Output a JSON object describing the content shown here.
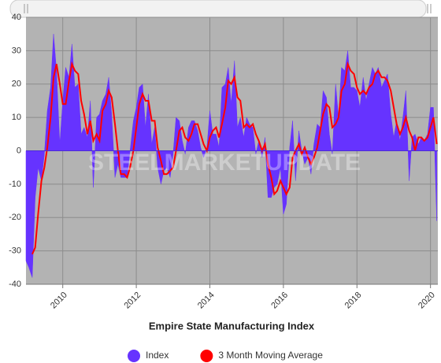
{
  "chart_data": {
    "type": "area",
    "title": "Empire State Manufacturing Index",
    "watermark": "STEELMARKETUPDATE",
    "x": [
      2009,
      2009.08,
      2009.17,
      2009.25,
      2009.33,
      2009.42,
      2009.5,
      2009.58,
      2009.67,
      2009.75,
      2009.83,
      2009.92,
      2010,
      2010.08,
      2010.17,
      2010.25,
      2010.33,
      2010.42,
      2010.5,
      2010.58,
      2010.67,
      2010.75,
      2010.83,
      2010.92,
      2011,
      2011.08,
      2011.17,
      2011.25,
      2011.33,
      2011.42,
      2011.5,
      2011.58,
      2011.67,
      2011.75,
      2011.83,
      2011.92,
      2012,
      2012.08,
      2012.17,
      2012.25,
      2012.33,
      2012.42,
      2012.5,
      2012.58,
      2012.67,
      2012.75,
      2012.83,
      2012.92,
      2013,
      2013.08,
      2013.17,
      2013.25,
      2013.33,
      2013.42,
      2013.5,
      2013.58,
      2013.67,
      2013.75,
      2013.83,
      2013.92,
      2014,
      2014.08,
      2014.17,
      2014.25,
      2014.33,
      2014.42,
      2014.5,
      2014.58,
      2014.67,
      2014.75,
      2014.83,
      2014.92,
      2015,
      2015.08,
      2015.17,
      2015.25,
      2015.33,
      2015.42,
      2015.5,
      2015.58,
      2015.67,
      2015.75,
      2015.83,
      2015.92,
      2016,
      2016.08,
      2016.17,
      2016.25,
      2016.33,
      2016.42,
      2016.5,
      2016.58,
      2016.67,
      2016.75,
      2016.83,
      2016.92,
      2017,
      2017.08,
      2017.17,
      2017.25,
      2017.33,
      2017.42,
      2017.5,
      2017.58,
      2017.67,
      2017.75,
      2017.83,
      2017.92,
      2018,
      2018.08,
      2018.17,
      2018.25,
      2018.33,
      2018.42,
      2018.5,
      2018.58,
      2018.67,
      2018.75,
      2018.83,
      2018.92,
      2019,
      2019.08,
      2019.17,
      2019.25,
      2019.33,
      2019.42,
      2019.5,
      2019.58,
      2019.67,
      2019.75,
      2019.83,
      2019.92,
      2020,
      2020.08,
      2020.17
    ],
    "series": [
      {
        "name": "Index",
        "color": "#6633ff",
        "values": [
          -33,
          -35,
          -38,
          -14,
          -5,
          -9,
          -1,
          12,
          19,
          35,
          24,
          2,
          15,
          25,
          22,
          32,
          19,
          20,
          5,
          7,
          4,
          15,
          -11,
          10,
          11,
          15,
          17,
          22,
          11,
          -8,
          -4,
          -8,
          -8,
          -8,
          0,
          9,
          13,
          19,
          20,
          7,
          17,
          2,
          7,
          -5,
          -10,
          -6,
          -5,
          -8,
          -1,
          10,
          9,
          3,
          -1,
          7,
          9,
          9,
          6,
          1,
          -2,
          1,
          12,
          5,
          5,
          1,
          19,
          20,
          25,
          14,
          27,
          7,
          10,
          4,
          10,
          8,
          7,
          -1,
          3,
          -2,
          4,
          -14,
          -14,
          -11,
          -10,
          -5,
          -19,
          -16,
          1,
          9,
          -9,
          6,
          0,
          -4,
          -2,
          -7,
          2,
          8,
          7,
          18,
          16,
          5,
          -1,
          20,
          10,
          25,
          24,
          30,
          19,
          19,
          18,
          13,
          22,
          15,
          20,
          25,
          23,
          25,
          19,
          21,
          23,
          11,
          4,
          9,
          3,
          10,
          18,
          -9,
          4,
          5,
          2,
          4,
          3,
          5,
          13,
          13,
          -21
        ]
      },
      {
        "name": "3 Month Moving Average",
        "color": "#ff0000",
        "values": [
          null,
          null,
          -31,
          -29,
          -19,
          -9,
          -5,
          1,
          10,
          22,
          26,
          20,
          14,
          14,
          21,
          26,
          24,
          23,
          15,
          11,
          5,
          9,
          3,
          5,
          3,
          12,
          14,
          18,
          16,
          8,
          0,
          -7,
          -7,
          -8,
          -5,
          0,
          7,
          14,
          17,
          15,
          15,
          9,
          9,
          1,
          -3,
          -7,
          -7,
          -6,
          -5,
          0,
          6,
          7,
          4,
          3,
          5,
          8,
          8,
          5,
          2,
          0,
          4,
          6,
          7,
          4,
          8,
          13,
          21,
          20,
          22,
          16,
          15,
          7,
          8,
          7,
          8,
          5,
          3,
          0,
          2,
          -4,
          -8,
          -13,
          -12,
          -9,
          -11,
          -13,
          -11,
          -2,
          0,
          2,
          -1,
          1,
          -2,
          -4,
          -2,
          1,
          6,
          11,
          14,
          13,
          7,
          8,
          10,
          18,
          20,
          26,
          24,
          23,
          19,
          17,
          18,
          17,
          19,
          20,
          23,
          24,
          22,
          22,
          21,
          18,
          13,
          8,
          5,
          7,
          10,
          6,
          4,
          0,
          4,
          4,
          3,
          4,
          7,
          10,
          2
        ]
      }
    ],
    "xlim": [
      2009,
      2020.2
    ],
    "xticks": [
      2010,
      2012,
      2014,
      2016,
      2018,
      2020
    ],
    "ylim": [
      -40,
      40
    ],
    "yticks": [
      -40,
      -30,
      -20,
      -10,
      0,
      10,
      20,
      30,
      40
    ],
    "grid": true,
    "legend": "bottom"
  }
}
